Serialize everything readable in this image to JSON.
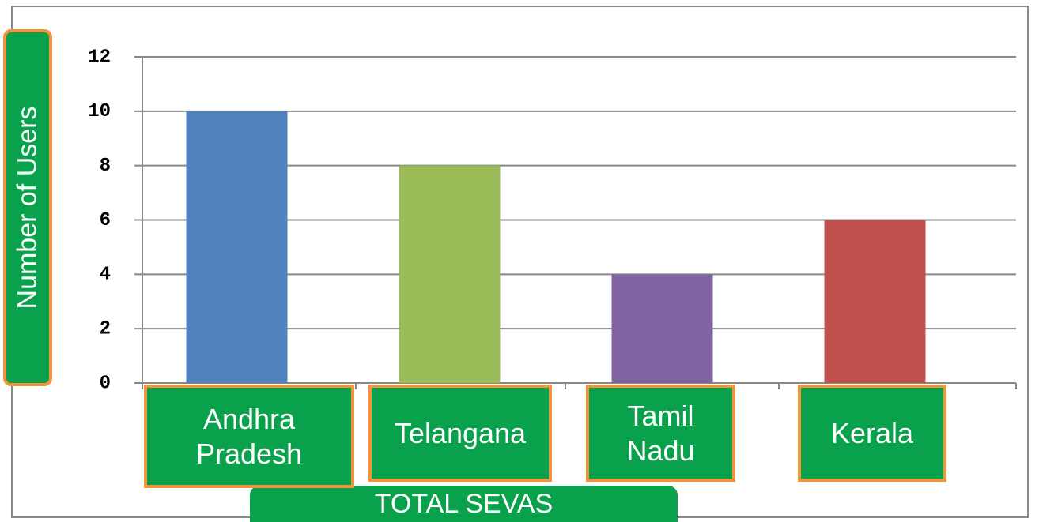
{
  "chart_data": {
    "type": "bar",
    "y_label": "Number of Users",
    "x_label": "TOTAL SEVAS",
    "categories": [
      "Andhra Pradesh",
      "Telangana",
      "Tamil Nadu",
      "Kerala"
    ],
    "values": [
      10,
      8,
      4,
      6
    ],
    "colors": [
      "#4f81bd",
      "#9bbb59",
      "#8064a2",
      "#c0504d"
    ],
    "ylim": [
      0,
      12
    ],
    "yticks": [
      0,
      2,
      4,
      6,
      8,
      10,
      12
    ],
    "grid": true
  }
}
